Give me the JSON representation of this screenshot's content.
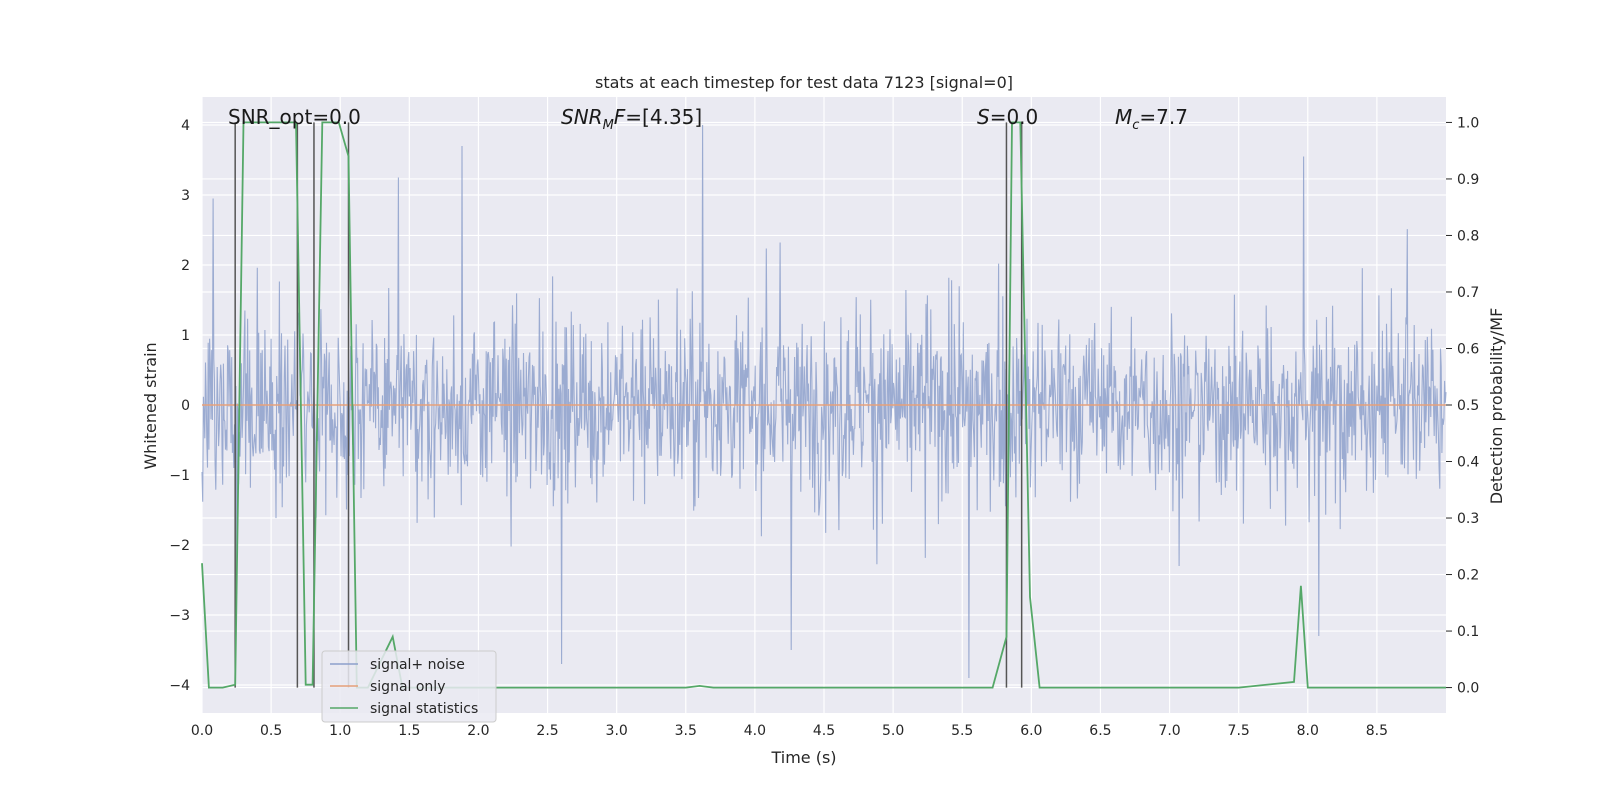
{
  "chart_data": {
    "type": "line",
    "title": "stats at each timestep for test data 7123 [signal=0]",
    "xlabel": "Time (s)",
    "ylabel": "Whitened strain",
    "y2label": "Detection probability/MF",
    "xlim": [
      0.0,
      9.0
    ],
    "ylim": [
      -4.4,
      4.4
    ],
    "y2lim": [
      -0.045,
      1.045
    ],
    "x_ticks": [
      "0.0",
      "0.5",
      "1.0",
      "1.5",
      "2.0",
      "2.5",
      "3.0",
      "3.5",
      "4.0",
      "4.5",
      "5.0",
      "5.5",
      "6.0",
      "6.5",
      "7.0",
      "7.5",
      "8.0",
      "8.5"
    ],
    "y_ticks": [
      "4",
      "3",
      "2",
      "1",
      "0",
      "−1",
      "−2",
      "−3",
      "−4"
    ],
    "y2_ticks": [
      "1.0",
      "0.9",
      "0.8",
      "0.7",
      "0.6",
      "0.5",
      "0.4",
      "0.3",
      "0.2",
      "0.1",
      "0.0"
    ],
    "grid": true,
    "legend_position": "lower-left",
    "annotations": {
      "snr_opt": "SNR_opt=0.0",
      "snr_mf": "=[4.35]",
      "s": "=0.0",
      "mc": "=7.7"
    },
    "series": [
      {
        "name": "signal+ noise",
        "axis": "left",
        "color": "#8da0cb",
        "description_range": [
          -3.9,
          4.0
        ],
        "notable_spikes": [
          {
            "x": 0.08,
            "y": 2.95
          },
          {
            "x": 0.25,
            "y": -2.7
          },
          {
            "x": 1.42,
            "y": 3.25
          },
          {
            "x": 1.88,
            "y": 3.7
          },
          {
            "x": 2.6,
            "y": -3.7
          },
          {
            "x": 3.62,
            "y": 4.0
          },
          {
            "x": 4.26,
            "y": -3.5
          },
          {
            "x": 5.55,
            "y": -3.9
          },
          {
            "x": 7.97,
            "y": 3.55
          },
          {
            "x": 8.08,
            "y": -3.3
          }
        ]
      },
      {
        "name": "signal only",
        "axis": "left",
        "color": "#e5a07a",
        "x": [
          0.0,
          9.0
        ],
        "y": [
          0.0,
          0.0
        ]
      },
      {
        "name": "signal statistics",
        "axis": "right",
        "color": "#55a868",
        "x": [
          0.0,
          0.05,
          0.15,
          0.24,
          0.3,
          0.68,
          0.75,
          0.8,
          0.87,
          0.99,
          1.06,
          1.12,
          1.2,
          1.3,
          1.38,
          1.45,
          2.0,
          3.5,
          3.6,
          3.7,
          5.0,
          5.72,
          5.82,
          5.86,
          5.92,
          5.99,
          6.06,
          7.5,
          7.9,
          7.95,
          8.0,
          8.06,
          8.5,
          9.0
        ],
        "y": [
          0.22,
          0.0,
          0.0,
          0.005,
          1.0,
          1.0,
          0.005,
          0.005,
          1.0,
          1.0,
          0.94,
          0.0,
          0.0,
          0.05,
          0.09,
          0.0,
          0.0,
          0.0,
          0.003,
          0.0,
          0.0,
          0.0,
          0.09,
          1.0,
          1.0,
          0.16,
          0.0,
          0.0,
          0.01,
          0.18,
          0.0,
          0.0,
          0.0,
          0.0
        ]
      }
    ],
    "event_markers_s": [
      0.24,
      0.69,
      0.81,
      1.06,
      5.82,
      5.93
    ],
    "event_marker_color": "#555555"
  }
}
